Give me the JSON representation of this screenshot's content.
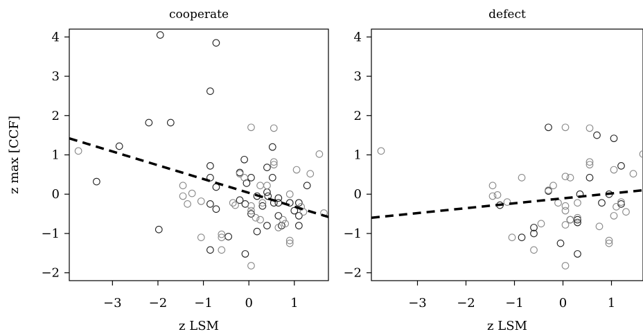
{
  "chart_data": [
    {
      "type": "scatter",
      "title": "cooperate",
      "xlabel": "z LSM",
      "ylabel": "z max [CCF]",
      "xlim": [
        -3.95,
        1.75
      ],
      "ylim": [
        -2.2,
        4.2
      ],
      "xticks": [
        -3,
        -2,
        -1,
        0,
        1
      ],
      "yticks": [
        -2,
        -1,
        0,
        1,
        2,
        3,
        4
      ],
      "trend_line": {
        "x": [
          -3.95,
          1.75
        ],
        "y": [
          1.42,
          -0.58
        ]
      },
      "colors": {
        "dark": "#222222",
        "light": "#888888"
      },
      "series": [
        {
          "color": "dark",
          "points": [
            [
              -1.95,
              4.05
            ],
            [
              -0.72,
              3.85
            ],
            [
              -0.85,
              2.62
            ],
            [
              -2.2,
              1.82
            ],
            [
              -1.72,
              1.82
            ],
            [
              -2.85,
              1.22
            ],
            [
              -3.35,
              0.32
            ],
            [
              -1.98,
              -0.9
            ],
            [
              -0.85,
              0.72
            ],
            [
              -0.85,
              0.42
            ],
            [
              -0.72,
              0.18
            ],
            [
              -0.85,
              -0.25
            ],
            [
              -0.72,
              -0.38
            ],
            [
              -0.85,
              -1.42
            ],
            [
              -0.45,
              -1.08
            ],
            [
              -0.2,
              0.55
            ],
            [
              -0.1,
              0.88
            ],
            [
              -0.05,
              0.28
            ],
            [
              0.05,
              0.42
            ],
            [
              -0.2,
              -0.15
            ],
            [
              -0.08,
              -0.25
            ],
            [
              0.05,
              -0.5
            ],
            [
              0.18,
              -0.05
            ],
            [
              0.3,
              -0.3
            ],
            [
              0.4,
              0.05
            ],
            [
              0.42,
              -0.05
            ],
            [
              0.4,
              0.68
            ],
            [
              0.52,
              1.2
            ],
            [
              0.52,
              0.42
            ],
            [
              0.55,
              -0.22
            ],
            [
              0.65,
              -0.22
            ],
            [
              0.65,
              -0.1
            ],
            [
              0.65,
              -0.55
            ],
            [
              0.72,
              -0.8
            ],
            [
              0.9,
              -0.22
            ],
            [
              1.0,
              -0.42
            ],
            [
              1.1,
              -0.22
            ],
            [
              1.1,
              -0.55
            ],
            [
              1.1,
              -0.8
            ],
            [
              1.28,
              0.22
            ],
            [
              0.4,
              -0.8
            ],
            [
              0.18,
              -0.95
            ],
            [
              -0.08,
              -1.52
            ]
          ]
        },
        {
          "color": "light",
          "points": [
            [
              -3.75,
              1.1
            ],
            [
              -1.45,
              0.22
            ],
            [
              -1.45,
              -0.05
            ],
            [
              -1.35,
              -0.25
            ],
            [
              -1.25,
              0.02
            ],
            [
              -1.05,
              -0.18
            ],
            [
              -1.05,
              -1.1
            ],
            [
              -0.6,
              -1.02
            ],
            [
              -0.6,
              -1.1
            ],
            [
              -0.6,
              -1.42
            ],
            [
              -0.35,
              -0.22
            ],
            [
              -0.2,
              0.52
            ],
            [
              -0.1,
              0.42
            ],
            [
              0.05,
              1.7
            ],
            [
              0.05,
              -0.3
            ],
            [
              0.05,
              -0.42
            ],
            [
              0.05,
              -1.82
            ],
            [
              0.15,
              -0.6
            ],
            [
              0.25,
              -0.65
            ],
            [
              0.3,
              -0.22
            ],
            [
              0.4,
              0.22
            ],
            [
              0.55,
              1.68
            ],
            [
              0.55,
              0.82
            ],
            [
              0.55,
              0.75
            ],
            [
              0.65,
              -0.85
            ],
            [
              0.8,
              -0.75
            ],
            [
              0.9,
              0.0
            ],
            [
              0.9,
              -1.18
            ],
            [
              0.9,
              -1.25
            ],
            [
              1.05,
              0.62
            ],
            [
              1.15,
              -0.32
            ],
            [
              1.2,
              -0.45
            ],
            [
              1.35,
              0.52
            ],
            [
              1.55,
              1.02
            ],
            [
              1.65,
              -0.48
            ],
            [
              0.25,
              0.22
            ],
            [
              0.75,
              -0.65
            ],
            [
              -0.3,
              -0.28
            ]
          ]
        }
      ]
    },
    {
      "type": "scatter",
      "title": "defect",
      "xlabel": "z LSM",
      "ylabel": "",
      "xlim": [
        -3.95,
        1.65
      ],
      "ylim": [
        -2.2,
        4.2
      ],
      "xticks": [
        -3,
        -2,
        -1,
        0,
        1
      ],
      "yticks": [
        -2,
        -1,
        0,
        1,
        2,
        3,
        4
      ],
      "trend_line": {
        "x": [
          -3.95,
          1.65
        ],
        "y": [
          -0.6,
          0.1
        ]
      },
      "colors": {
        "dark": "#222222",
        "light": "#888888"
      },
      "series": [
        {
          "color": "dark",
          "points": [
            [
              -0.3,
              1.7
            ],
            [
              0.7,
              1.5
            ],
            [
              1.05,
              1.42
            ],
            [
              -0.3,
              0.08
            ],
            [
              0.35,
              0.0
            ],
            [
              0.55,
              0.42
            ],
            [
              0.95,
              0.0
            ],
            [
              1.2,
              0.72
            ],
            [
              0.8,
              -0.22
            ],
            [
              1.2,
              -0.25
            ],
            [
              -0.6,
              -0.85
            ],
            [
              -0.6,
              -1.0
            ],
            [
              -0.05,
              -1.25
            ],
            [
              0.3,
              -0.65
            ],
            [
              0.3,
              -0.72
            ],
            [
              0.3,
              -1.52
            ],
            [
              0.15,
              -0.65
            ],
            [
              -1.3,
              -0.28
            ],
            [
              -0.85,
              -1.1
            ]
          ]
        },
        {
          "color": "light",
          "points": [
            [
              -3.75,
              1.1
            ],
            [
              0.05,
              1.7
            ],
            [
              0.55,
              1.68
            ],
            [
              0.55,
              0.82
            ],
            [
              0.55,
              0.75
            ],
            [
              -1.45,
              0.22
            ],
            [
              -1.45,
              -0.05
            ],
            [
              -1.35,
              -0.02
            ],
            [
              -1.15,
              -0.2
            ],
            [
              -1.05,
              -1.1
            ],
            [
              -0.85,
              0.42
            ],
            [
              -0.6,
              -1.42
            ],
            [
              -0.45,
              -0.75
            ],
            [
              -0.3,
              0.1
            ],
            [
              -0.2,
              0.22
            ],
            [
              -0.1,
              -0.22
            ],
            [
              0.05,
              0.45
            ],
            [
              0.05,
              -0.3
            ],
            [
              0.05,
              -0.42
            ],
            [
              0.05,
              -0.78
            ],
            [
              0.05,
              -1.82
            ],
            [
              0.15,
              0.42
            ],
            [
              0.15,
              -0.65
            ],
            [
              0.3,
              -0.6
            ],
            [
              0.3,
              -0.22
            ],
            [
              0.75,
              -0.82
            ],
            [
              0.95,
              -1.18
            ],
            [
              0.95,
              -1.25
            ],
            [
              1.05,
              0.62
            ],
            [
              1.1,
              -0.32
            ],
            [
              1.05,
              -0.55
            ],
            [
              1.2,
              -0.2
            ],
            [
              1.3,
              -0.45
            ],
            [
              1.45,
              0.52
            ],
            [
              1.65,
              1.02
            ]
          ]
        }
      ]
    }
  ]
}
